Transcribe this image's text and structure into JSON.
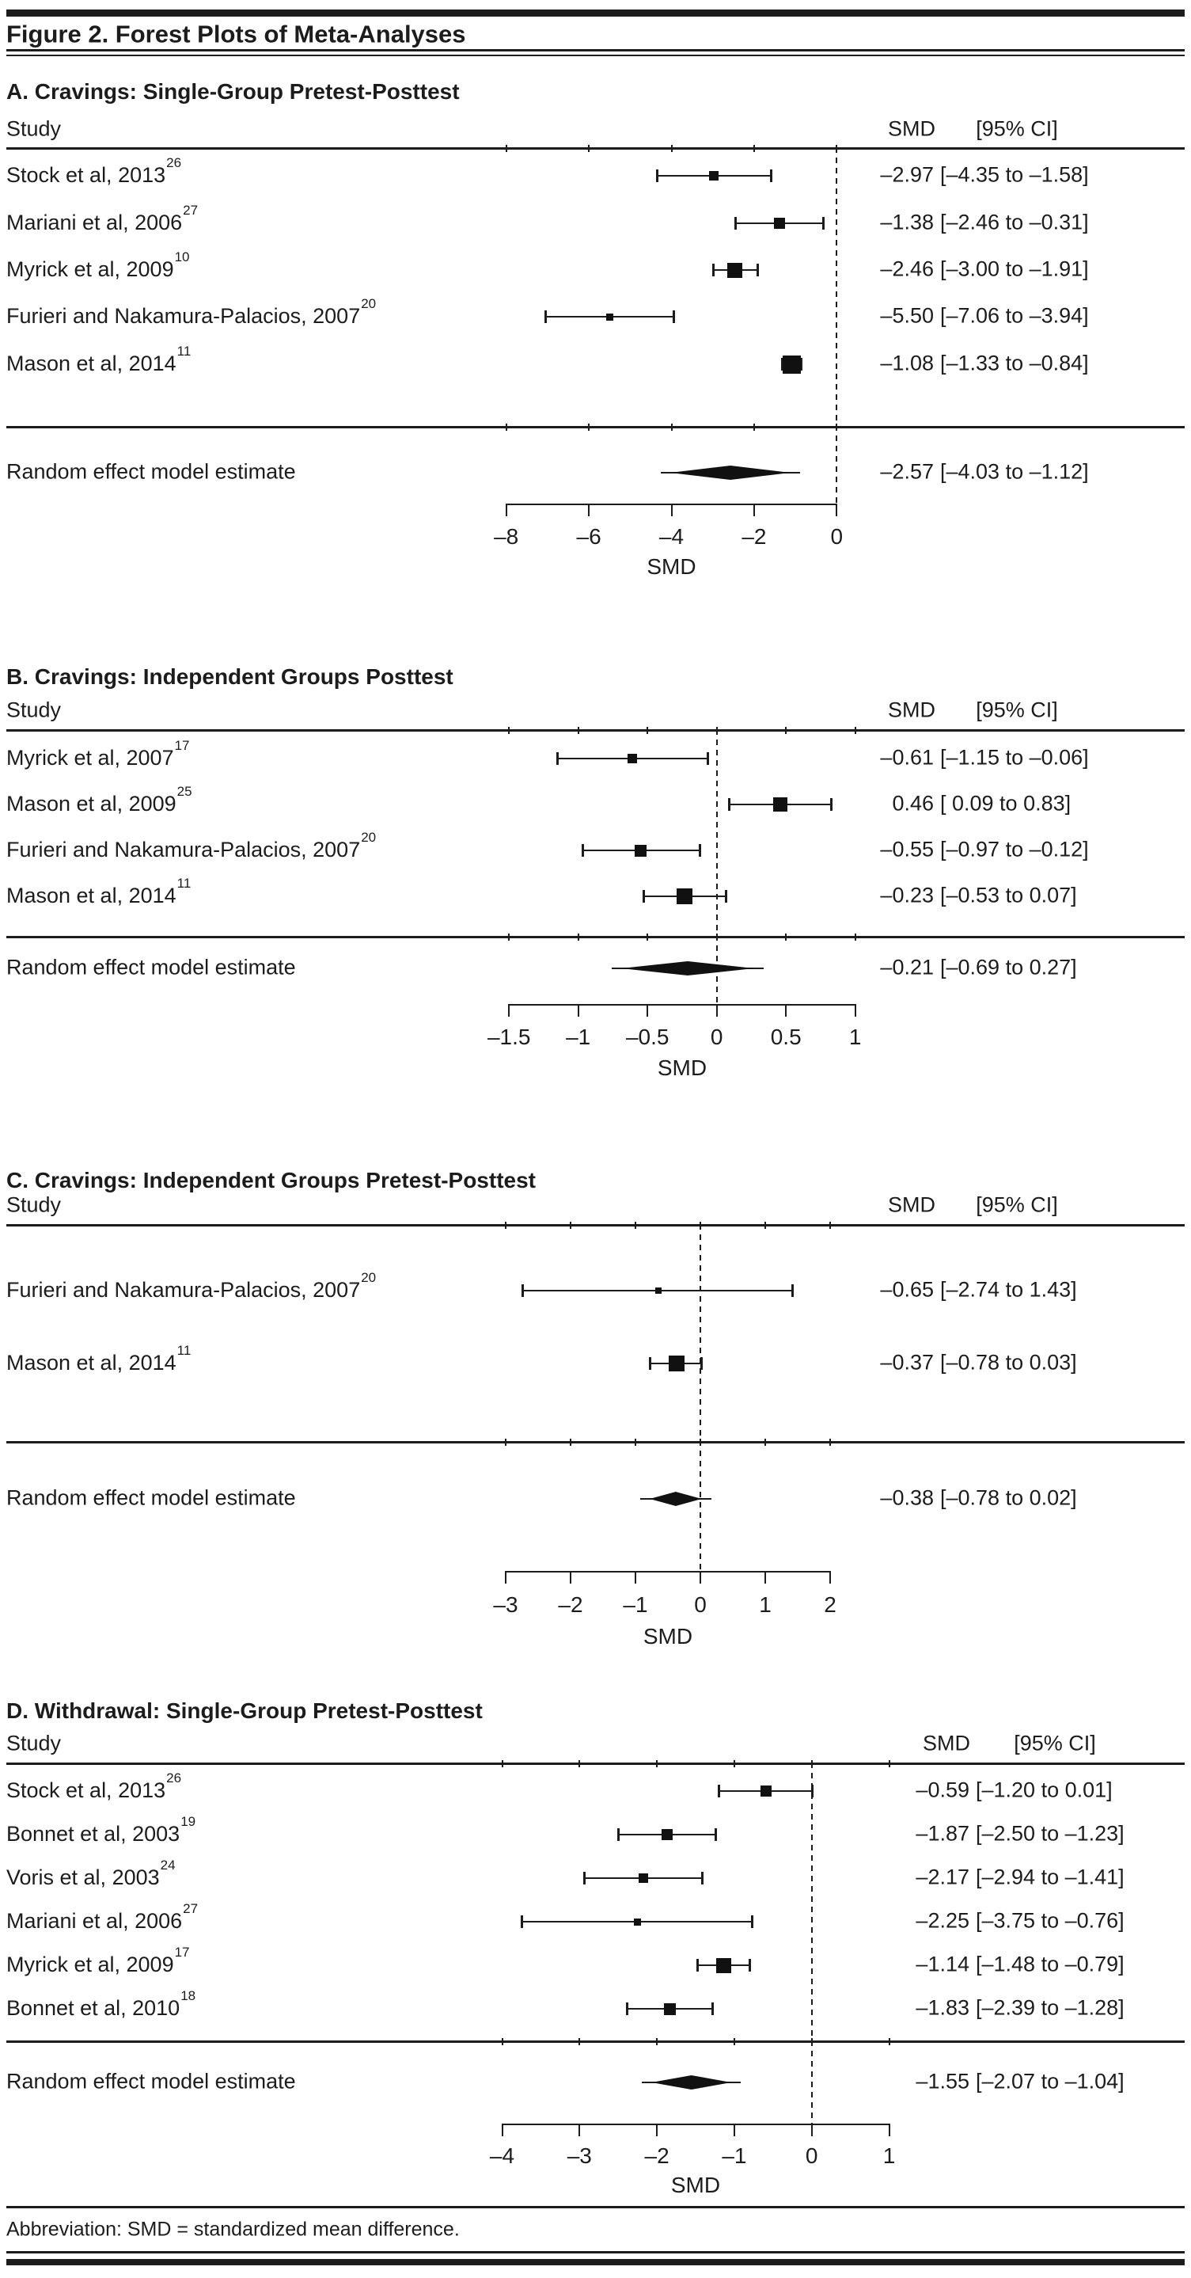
{
  "figure": {
    "title": "Figure 2. Forest Plots of Meta-Analyses",
    "footer": "Abbreviation: SMD = standardized mean difference.",
    "column_headers": {
      "study": "Study",
      "smd": "SMD",
      "ci": "[95% CI]"
    },
    "summary_row_label": "Random effect model estimate"
  },
  "chart_data": [
    {
      "panel": "A",
      "type": "scatter",
      "variant": "forest-plot",
      "title": "A. Cravings: Single-Group Pretest-Posttest",
      "xlabel": "SMD",
      "xlim": [
        -8,
        0
      ],
      "xticks": [
        -8,
        -6,
        -4,
        -2,
        0
      ],
      "xtick_labels": [
        "–8",
        "–6",
        "–4",
        "–2",
        "0"
      ],
      "zero_line": 0,
      "studies": [
        {
          "label": "Stock et al, 2013",
          "ref": "26",
          "smd": -2.97,
          "ci": [
            -4.35,
            -1.58
          ],
          "smd_text": "–2.97",
          "ci_text": "[–4.35 to –1.58]"
        },
        {
          "label": "Mariani et al, 2006",
          "ref": "27",
          "smd": -1.38,
          "ci": [
            -2.46,
            -0.31
          ],
          "smd_text": "–1.38",
          "ci_text": "[–2.46 to –0.31]"
        },
        {
          "label": "Myrick et al, 2009",
          "ref": "10",
          "smd": -2.46,
          "ci": [
            -3.0,
            -1.91
          ],
          "smd_text": "–2.46",
          "ci_text": "[–3.00 to –1.91]"
        },
        {
          "label": "Furieri and Nakamura-Palacios, 2007",
          "ref": "20",
          "smd": -5.5,
          "ci": [
            -7.06,
            -3.94
          ],
          "smd_text": "–5.50",
          "ci_text": "[–7.06 to –3.94]"
        },
        {
          "label": "Mason et al, 2014",
          "ref": "11",
          "smd": -1.08,
          "ci": [
            -1.33,
            -0.84
          ],
          "smd_text": "–1.08",
          "ci_text": "[–1.33 to –0.84]"
        }
      ],
      "summary": {
        "smd": -2.57,
        "ci": [
          -4.03,
          -1.12
        ],
        "smd_text": "–2.57",
        "ci_text": "[–4.03 to –1.12]"
      }
    },
    {
      "panel": "B",
      "type": "scatter",
      "variant": "forest-plot",
      "title": "B. Cravings: Independent Groups Posttest",
      "xlabel": "SMD",
      "xlim": [
        -1.5,
        1
      ],
      "xticks": [
        -1.5,
        -1,
        -0.5,
        0,
        0.5,
        1
      ],
      "xtick_labels": [
        "–1.5",
        "–1",
        "–0.5",
        "0",
        "0.5",
        "1"
      ],
      "zero_line": 0,
      "studies": [
        {
          "label": "Myrick et al, 2007",
          "ref": "17",
          "smd": -0.61,
          "ci": [
            -1.15,
            -0.06
          ],
          "smd_text": "–0.61",
          "ci_text": "[–1.15 to –0.06]"
        },
        {
          "label": "Mason et al, 2009",
          "ref": "25",
          "smd": 0.46,
          "ci": [
            0.09,
            0.83
          ],
          "smd_text": "0.46",
          "ci_text": "[ 0.09 to 0.83]"
        },
        {
          "label": "Furieri and Nakamura-Palacios, 2007",
          "ref": "20",
          "smd": -0.55,
          "ci": [
            -0.97,
            -0.12
          ],
          "smd_text": "–0.55",
          "ci_text": "[–0.97 to –0.12]"
        },
        {
          "label": "Mason et al, 2014",
          "ref": "11",
          "smd": -0.23,
          "ci": [
            -0.53,
            0.07
          ],
          "smd_text": "–0.23",
          "ci_text": "[–0.53 to 0.07]"
        }
      ],
      "summary": {
        "smd": -0.21,
        "ci": [
          -0.69,
          0.27
        ],
        "smd_text": "–0.21",
        "ci_text": "[–0.69 to 0.27]"
      }
    },
    {
      "panel": "C",
      "type": "scatter",
      "variant": "forest-plot",
      "title": "C. Cravings: Independent Groups Pretest-Posttest",
      "xlabel": "SMD",
      "xlim": [
        -3,
        2
      ],
      "xticks": [
        -3,
        -2,
        -1,
        0,
        1,
        2
      ],
      "xtick_labels": [
        "–3",
        "–2",
        "–1",
        "0",
        "1",
        "2"
      ],
      "zero_line": 0,
      "studies": [
        {
          "label": "Furieri and Nakamura-Palacios, 2007",
          "ref": "20",
          "smd": -0.65,
          "ci": [
            -2.74,
            1.43
          ],
          "smd_text": "–0.65",
          "ci_text": "[–2.74 to 1.43]"
        },
        {
          "label": "Mason et al, 2014",
          "ref": "11",
          "smd": -0.37,
          "ci": [
            -0.78,
            0.03
          ],
          "smd_text": "–0.37",
          "ci_text": "[–0.78 to 0.03]"
        }
      ],
      "summary": {
        "smd": -0.38,
        "ci": [
          -0.78,
          0.02
        ],
        "smd_text": "–0.38",
        "ci_text": "[–0.78 to 0.02]"
      }
    },
    {
      "panel": "D",
      "type": "scatter",
      "variant": "forest-plot",
      "title": "D. Withdrawal: Single-Group Pretest-Posttest",
      "xlabel": "SMD",
      "xlim": [
        -4,
        1
      ],
      "xticks": [
        -4,
        -3,
        -2,
        -1,
        0,
        1
      ],
      "xtick_labels": [
        "–4",
        "–3",
        "–2",
        "–1",
        "0",
        "1"
      ],
      "zero_line": 0,
      "studies": [
        {
          "label": "Stock et al, 2013",
          "ref": "26",
          "smd": -0.59,
          "ci": [
            -1.2,
            0.01
          ],
          "smd_text": "–0.59",
          "ci_text": "[–1.20 to 0.01]"
        },
        {
          "label": "Bonnet et al, 2003",
          "ref": "19",
          "smd": -1.87,
          "ci": [
            -2.5,
            -1.23
          ],
          "smd_text": "–1.87",
          "ci_text": "[–2.50 to –1.23]"
        },
        {
          "label": "Voris et al, 2003",
          "ref": "24",
          "smd": -2.17,
          "ci": [
            -2.94,
            -1.41
          ],
          "smd_text": "–2.17",
          "ci_text": "[–2.94 to –1.41]"
        },
        {
          "label": "Mariani et al, 2006",
          "ref": "27",
          "smd": -2.25,
          "ci": [
            -3.75,
            -0.76
          ],
          "smd_text": "–2.25",
          "ci_text": "[–3.75 to –0.76]"
        },
        {
          "label": "Myrick et al, 2009",
          "ref": "17",
          "smd": -1.14,
          "ci": [
            -1.48,
            -0.79
          ],
          "smd_text": "–1.14",
          "ci_text": "[–1.48 to –0.79]"
        },
        {
          "label": "Bonnet et al, 2010",
          "ref": "18",
          "smd": -1.83,
          "ci": [
            -2.39,
            -1.28
          ],
          "smd_text": "–1.83",
          "ci_text": "[–2.39 to –1.28]"
        }
      ],
      "summary": {
        "smd": -1.55,
        "ci": [
          -2.07,
          -1.04
        ],
        "smd_text": "–1.55",
        "ci_text": "[–2.07 to –1.04]"
      }
    }
  ]
}
